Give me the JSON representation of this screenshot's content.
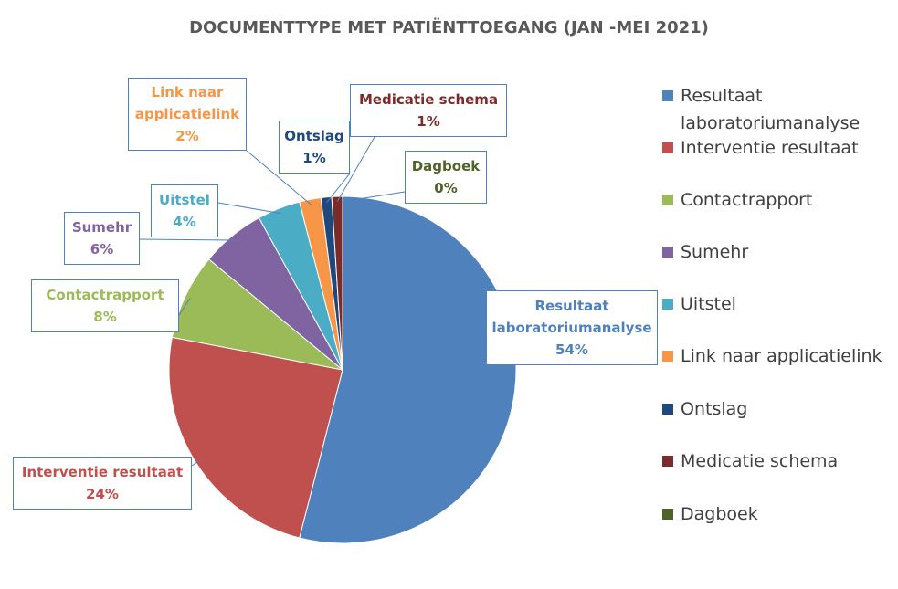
{
  "chart_data": {
    "type": "pie",
    "title": "DOCUMENTTYPE MET PATIËNTTOEGANG (JAN -MEI 2021)",
    "categories": [
      "Resultaat laboratoriumanalyse",
      "Interventie resultaat",
      "Contactrapport",
      "Sumehr",
      "Uitstel",
      "Link naar applicatielink",
      "Ontslag",
      "Medicatie schema",
      "Dagboek"
    ],
    "values": [
      54,
      24,
      8,
      6,
      4,
      2,
      1,
      1,
      0
    ],
    "value_labels": [
      "54%",
      "24%",
      "8%",
      "6%",
      "4%",
      "2%",
      "1%",
      "1%",
      "0%"
    ],
    "colors": [
      "#4f81bd",
      "#c0504d",
      "#9bbb59",
      "#8064a2",
      "#4bacc6",
      "#f79646",
      "#1f497d",
      "#7b2c2a",
      "#4f6228"
    ],
    "legend": "right"
  }
}
